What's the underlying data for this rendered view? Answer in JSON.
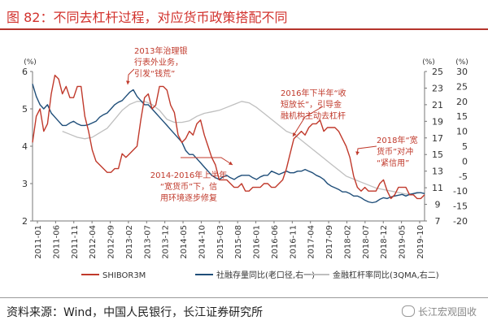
{
  "header": {
    "title": "图 82：不同去杠杆过程，对应货币政策搭配不同"
  },
  "footer": {
    "source": "资料来源：Wind，中国人民银行，长江证券研究所",
    "watermark": "长江宏观固收"
  },
  "chart_data": {
    "type": "line",
    "title": "",
    "units": {
      "left": "(%)",
      "right1": "(%)",
      "right2": "(%)"
    },
    "x_tick_labels": [
      "2011-01",
      "2011-06",
      "2011-11",
      "2012-04",
      "2012-09",
      "2013-02",
      "2013-07",
      "2013-12",
      "2014-05",
      "2014-10",
      "2015-03",
      "2015-08",
      "2016-01",
      "2016-06",
      "2016-11",
      "2017-04",
      "2017-09",
      "2018-02",
      "2018-07",
      "2018-12",
      "2019-05",
      "2019-10"
    ],
    "left_axis": {
      "ticks": [
        2,
        3,
        4,
        5,
        6
      ],
      "ylim": [
        2,
        6
      ]
    },
    "right1_axis": {
      "ticks": [
        7,
        9,
        11,
        13,
        15,
        17,
        19,
        21,
        23,
        25
      ],
      "ylim": [
        7,
        25
      ]
    },
    "right2_axis": {
      "ticks": [
        -20,
        -15,
        -10,
        -5,
        0,
        5,
        10,
        15,
        20,
        25,
        30
      ],
      "ylim": [
        -20,
        30
      ]
    },
    "grid": false,
    "legend_position": "bottom",
    "series": [
      {
        "name": "SHIBOR3M",
        "axis": "left",
        "color": "#c0392b",
        "x": [
          0,
          1,
          2,
          3,
          4,
          5,
          6,
          7,
          8,
          9,
          10,
          11,
          12,
          13,
          14,
          15,
          16,
          17,
          18,
          19,
          20,
          21,
          22,
          23,
          24,
          25,
          26,
          27,
          28,
          29,
          30,
          31,
          32,
          33,
          34,
          35,
          36,
          37,
          38,
          39,
          40,
          41,
          42,
          43,
          44,
          45,
          46,
          47,
          48,
          49,
          50,
          51,
          52,
          53,
          54,
          55,
          56,
          57,
          58,
          59,
          60,
          61,
          62,
          63,
          64,
          65,
          66,
          67,
          68,
          69,
          70,
          71,
          72,
          73,
          74,
          75,
          76,
          77,
          78,
          79,
          80,
          81,
          82,
          83,
          84,
          85,
          86,
          87,
          88,
          89,
          90,
          91,
          92,
          93,
          94,
          95,
          96,
          97,
          98,
          99,
          100,
          101,
          102,
          103,
          104,
          105
        ],
        "values": [
          4.1,
          4.8,
          5.0,
          4.4,
          4.6,
          5.4,
          5.9,
          5.8,
          5.4,
          5.6,
          5.3,
          5.3,
          5.6,
          5.6,
          4.8,
          4.4,
          3.9,
          3.6,
          3.5,
          3.4,
          3.3,
          3.3,
          3.4,
          3.4,
          3.8,
          3.7,
          3.8,
          3.9,
          4.0,
          4.7,
          5.3,
          5.4,
          5.0,
          5.1,
          5.6,
          5.6,
          5.5,
          5.1,
          4.9,
          4.3,
          4.1,
          4.2,
          4.4,
          4.3,
          4.6,
          4.7,
          4.3,
          4.0,
          3.7,
          3.5,
          3.1,
          3.1,
          3.1,
          3.0,
          2.9,
          2.9,
          3.0,
          2.8,
          2.8,
          2.9,
          2.9,
          2.9,
          3.0,
          3.0,
          2.9,
          2.9,
          3.0,
          3.1,
          3.4,
          3.8,
          4.2,
          4.3,
          4.4,
          4.3,
          4.5,
          4.6,
          4.6,
          4.7,
          4.4,
          4.5,
          4.5,
          4.5,
          4.4,
          4.2,
          4.0,
          3.7,
          3.2,
          2.9,
          2.8,
          2.9,
          2.8,
          2.8,
          2.8,
          3.0,
          3.1,
          2.8,
          2.6,
          2.7,
          2.9,
          2.9,
          2.9,
          2.7,
          2.7,
          2.6,
          2.6,
          2.7
        ]
      },
      {
        "name": "社融存量同比(老口径,右一)",
        "axis": "right1",
        "color": "#1f4e79",
        "x": [
          0,
          1,
          2,
          3,
          4,
          5,
          6,
          7,
          8,
          9,
          10,
          11,
          12,
          13,
          14,
          15,
          16,
          17,
          18,
          19,
          20,
          21,
          22,
          23,
          24,
          25,
          26,
          27,
          28,
          29,
          30,
          31,
          32,
          33,
          34,
          35,
          36,
          37,
          38,
          39,
          40,
          41,
          42,
          43,
          44,
          45,
          46,
          47,
          48,
          49,
          50,
          51,
          52,
          53,
          54,
          55,
          56,
          57,
          58,
          59,
          60,
          61,
          62,
          63,
          64,
          65,
          66,
          67,
          68,
          69,
          70,
          71,
          72,
          73,
          74,
          75,
          76,
          77,
          78,
          79,
          80,
          81,
          82,
          83,
          84,
          85,
          86,
          87,
          88,
          89,
          90,
          91,
          92,
          93,
          94,
          95,
          96,
          97,
          98,
          99,
          100,
          101,
          102,
          103,
          104,
          105
        ],
        "values": [
          23.5,
          22.0,
          21.0,
          20.5,
          21.0,
          20.0,
          19.5,
          19.0,
          18.5,
          18.5,
          18.8,
          19.0,
          18.7,
          18.5,
          18.5,
          18.6,
          18.8,
          19.0,
          19.5,
          19.8,
          20.0,
          20.5,
          21.0,
          21.3,
          21.5,
          22.0,
          22.5,
          22.8,
          22.0,
          21.5,
          21.0,
          21.0,
          20.5,
          20.0,
          19.5,
          19.0,
          18.5,
          18.0,
          17.5,
          17.0,
          16.5,
          15.5,
          15.0,
          15.0,
          14.5,
          14.0,
          13.5,
          13.0,
          12.5,
          12.2,
          12.0,
          12.3,
          12.5,
          12.2,
          12.0,
          12.3,
          12.5,
          12.5,
          12.5,
          12.2,
          12.0,
          12.3,
          12.5,
          12.5,
          13.0,
          12.8,
          12.6,
          12.8,
          13.0,
          12.8,
          12.8,
          13.0,
          13.0,
          13.2,
          13.0,
          12.8,
          12.5,
          12.3,
          12.0,
          11.5,
          11.2,
          11.0,
          10.8,
          10.5,
          10.5,
          10.3,
          10.0,
          10.0,
          9.8,
          9.5,
          9.3,
          9.2,
          9.3,
          9.6,
          9.8,
          9.7,
          9.9,
          10.0,
          10.1,
          10.2,
          10.0,
          10.2,
          10.3,
          10.4,
          10.4,
          10.3
        ]
      },
      {
        "name": "金融杠杆率同比(3QMA,右二)",
        "axis": "right2",
        "color": "#bfbfbf",
        "x": [
          8,
          10,
          12,
          14,
          16,
          18,
          20,
          22,
          24,
          26,
          28,
          30,
          32,
          34,
          36,
          38,
          40,
          42,
          44,
          46,
          48,
          50,
          52,
          54,
          56,
          58,
          60,
          62,
          64,
          66,
          68,
          70,
          72,
          74,
          76,
          78,
          80,
          82,
          84,
          86,
          88,
          90,
          92,
          94,
          96,
          98,
          100,
          102,
          104
        ],
        "values": [
          10.0,
          9.0,
          8.0,
          7.5,
          8.0,
          9.5,
          11.0,
          14.0,
          17.0,
          19.0,
          20.0,
          20.0,
          19.0,
          17.0,
          14.0,
          13.0,
          13.0,
          13.5,
          15.0,
          16.0,
          16.5,
          17.0,
          18.0,
          19.0,
          20.0,
          19.5,
          18.0,
          16.0,
          14.0,
          12.0,
          10.0,
          9.0,
          7.0,
          5.0,
          3.0,
          1.0,
          -1.0,
          -3.0,
          -5.0,
          -6.0,
          -7.0,
          -8.0,
          -9.0,
          -9.5,
          -10.0,
          -10.5,
          -11.0,
          -11.0,
          -10.5
        ]
      }
    ],
    "annotations": [
      {
        "text": [
          "2013年治理银",
          "行表外业务，",
          "引发“钱荒”"
        ],
        "color": "#c0392b"
      },
      {
        "text": [
          "2014-2016年上半年",
          "“宽货币”下，信",
          "用环境逐步修复"
        ],
        "color": "#c0392b"
      },
      {
        "text": [
          "2016年下半年“收",
          "短放长”，引导金",
          "融机构主动去杠杆"
        ],
        "color": "#c0392b"
      },
      {
        "text": [
          "2018年“宽",
          "货币”对冲",
          "“紧信用”"
        ],
        "color": "#c0392b"
      }
    ]
  }
}
